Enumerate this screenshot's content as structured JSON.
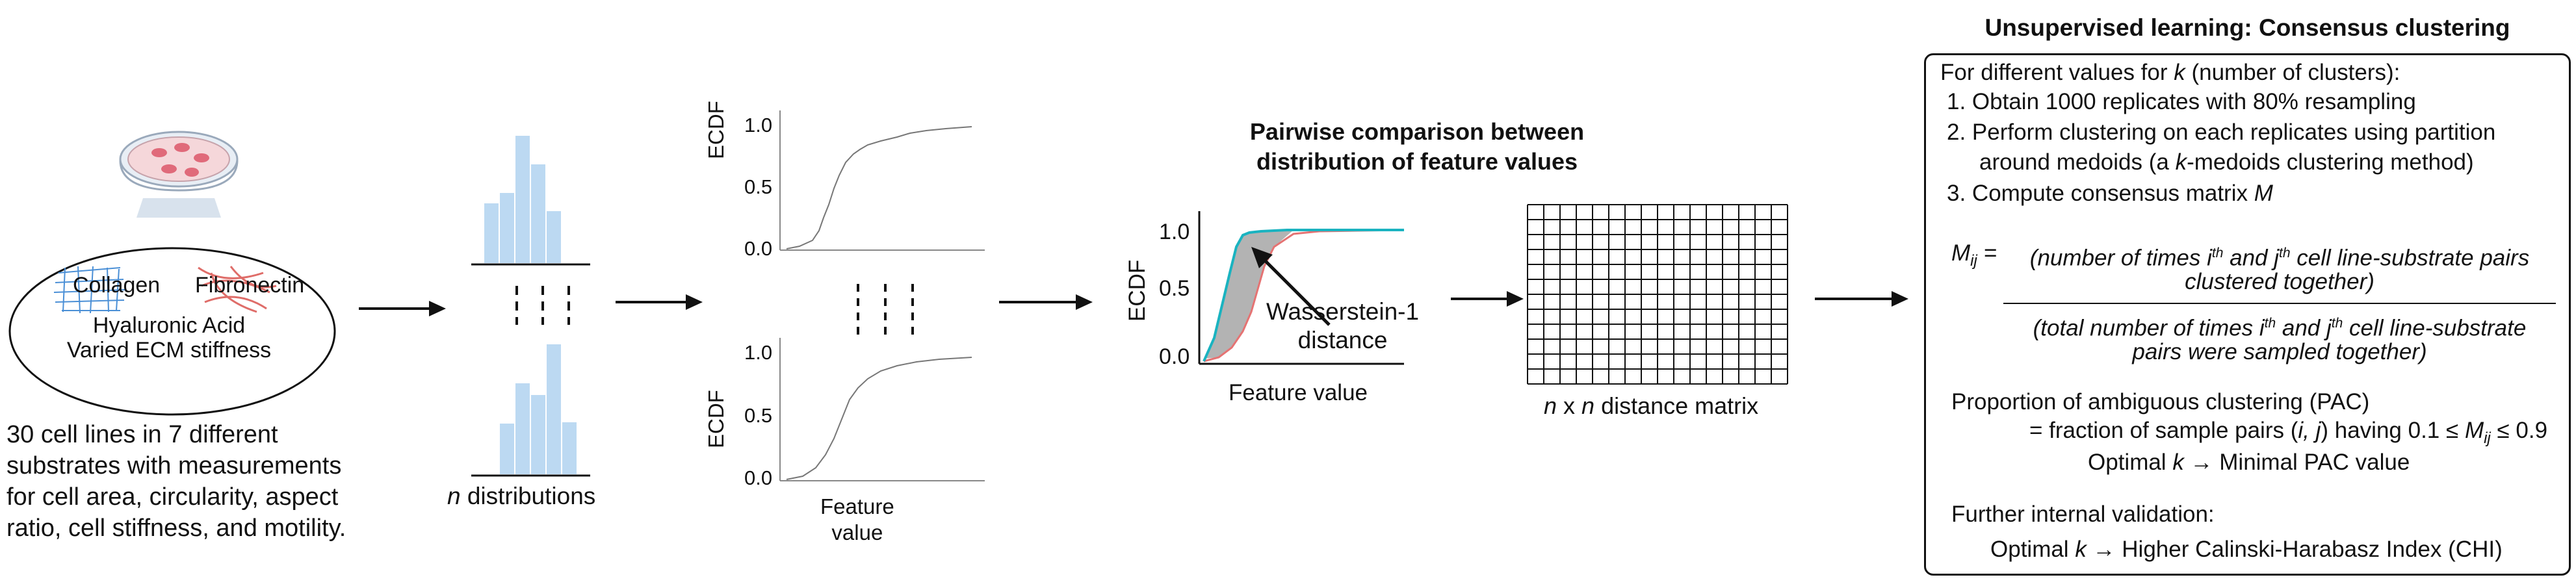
{
  "stage1": {
    "collagen": "Collagen",
    "fibronectin": "Fibronectin",
    "hyaluronic": "Hyaluronic Acid",
    "stiffness": "Varied ECM stiffness",
    "desc": [
      "30 cell lines in 7 different",
      "substrates with measurements",
      "for cell area, circularity, aspect",
      "ratio, cell stiffness, and motility."
    ]
  },
  "stage2": {
    "label_n": "n",
    "label_rest": " distributions"
  },
  "stage3": {
    "ylabel": "ECDF",
    "ticks": [
      "0.0",
      "0.5",
      "1.0"
    ],
    "xlabel_line1": "Feature",
    "xlabel_line2": "value"
  },
  "stage4": {
    "title_line1": "Pairwise comparison between",
    "title_line2": "distribution of feature values",
    "ylabel": "ECDF",
    "ticks": [
      "0.0",
      "0.5",
      "1.0"
    ],
    "xlabel": "Feature value",
    "annot_line1": "Wasserstein-1",
    "annot_line2": "distance",
    "colors": {
      "teal": "#1ab3c0",
      "red": "#e57373",
      "fill": "#b3b3b3"
    }
  },
  "stage5": {
    "label_n1": "n",
    "label_x": " x ",
    "label_n2": "n",
    "label_rest": " distance matrix"
  },
  "stage6": {
    "title": "Unsupervised learning: Consensus clustering",
    "intro_pre": "For different values for ",
    "intro_k": "k",
    "intro_post": " (number of clusters):",
    "step1": "1.  Obtain 1000 replicates with 80% resampling",
    "step2a": "2.  Perform clustering on each replicates using partition",
    "step2b_pre": "around medoids (a ",
    "step2b_k": "k",
    "step2b_post": "-medoids clustering method)",
    "step3_pre": "3.  Compute consensus matrix ",
    "step3_m": "M",
    "frac_num1_pre": "(number of times i",
    "frac_sup1": "th",
    "frac_num1_mid": " and j",
    "frac_sup2": "th",
    "frac_num1_post": " cell line-substrate pairs",
    "frac_num2": "clustered together)",
    "frac_den1_pre": "(total number of times i",
    "frac_den1_post": " cell line-substrate",
    "frac_den2": "pairs were sampled together)",
    "m_ij": "M",
    "m_sub": "ij",
    "m_eq": " = ",
    "pac_title": "Proportion of ambiguous clustering (PAC)",
    "pac_def_pre": "= fraction of sample pairs (",
    "pac_def_ij": "i, j",
    "pac_def_mid": ") having 0.1 ≤ ",
    "pac_def_post": " ≤ 0.9",
    "opt1_pre": "Optimal ",
    "opt1_k": "k",
    "opt1_post": "  → Minimal PAC value",
    "val_title": "Further internal validation:",
    "opt2_pre": "Optimal ",
    "opt2_k": "k",
    "opt2_post": "  → Higher Calinski-Harabasz Index (CHI)"
  }
}
